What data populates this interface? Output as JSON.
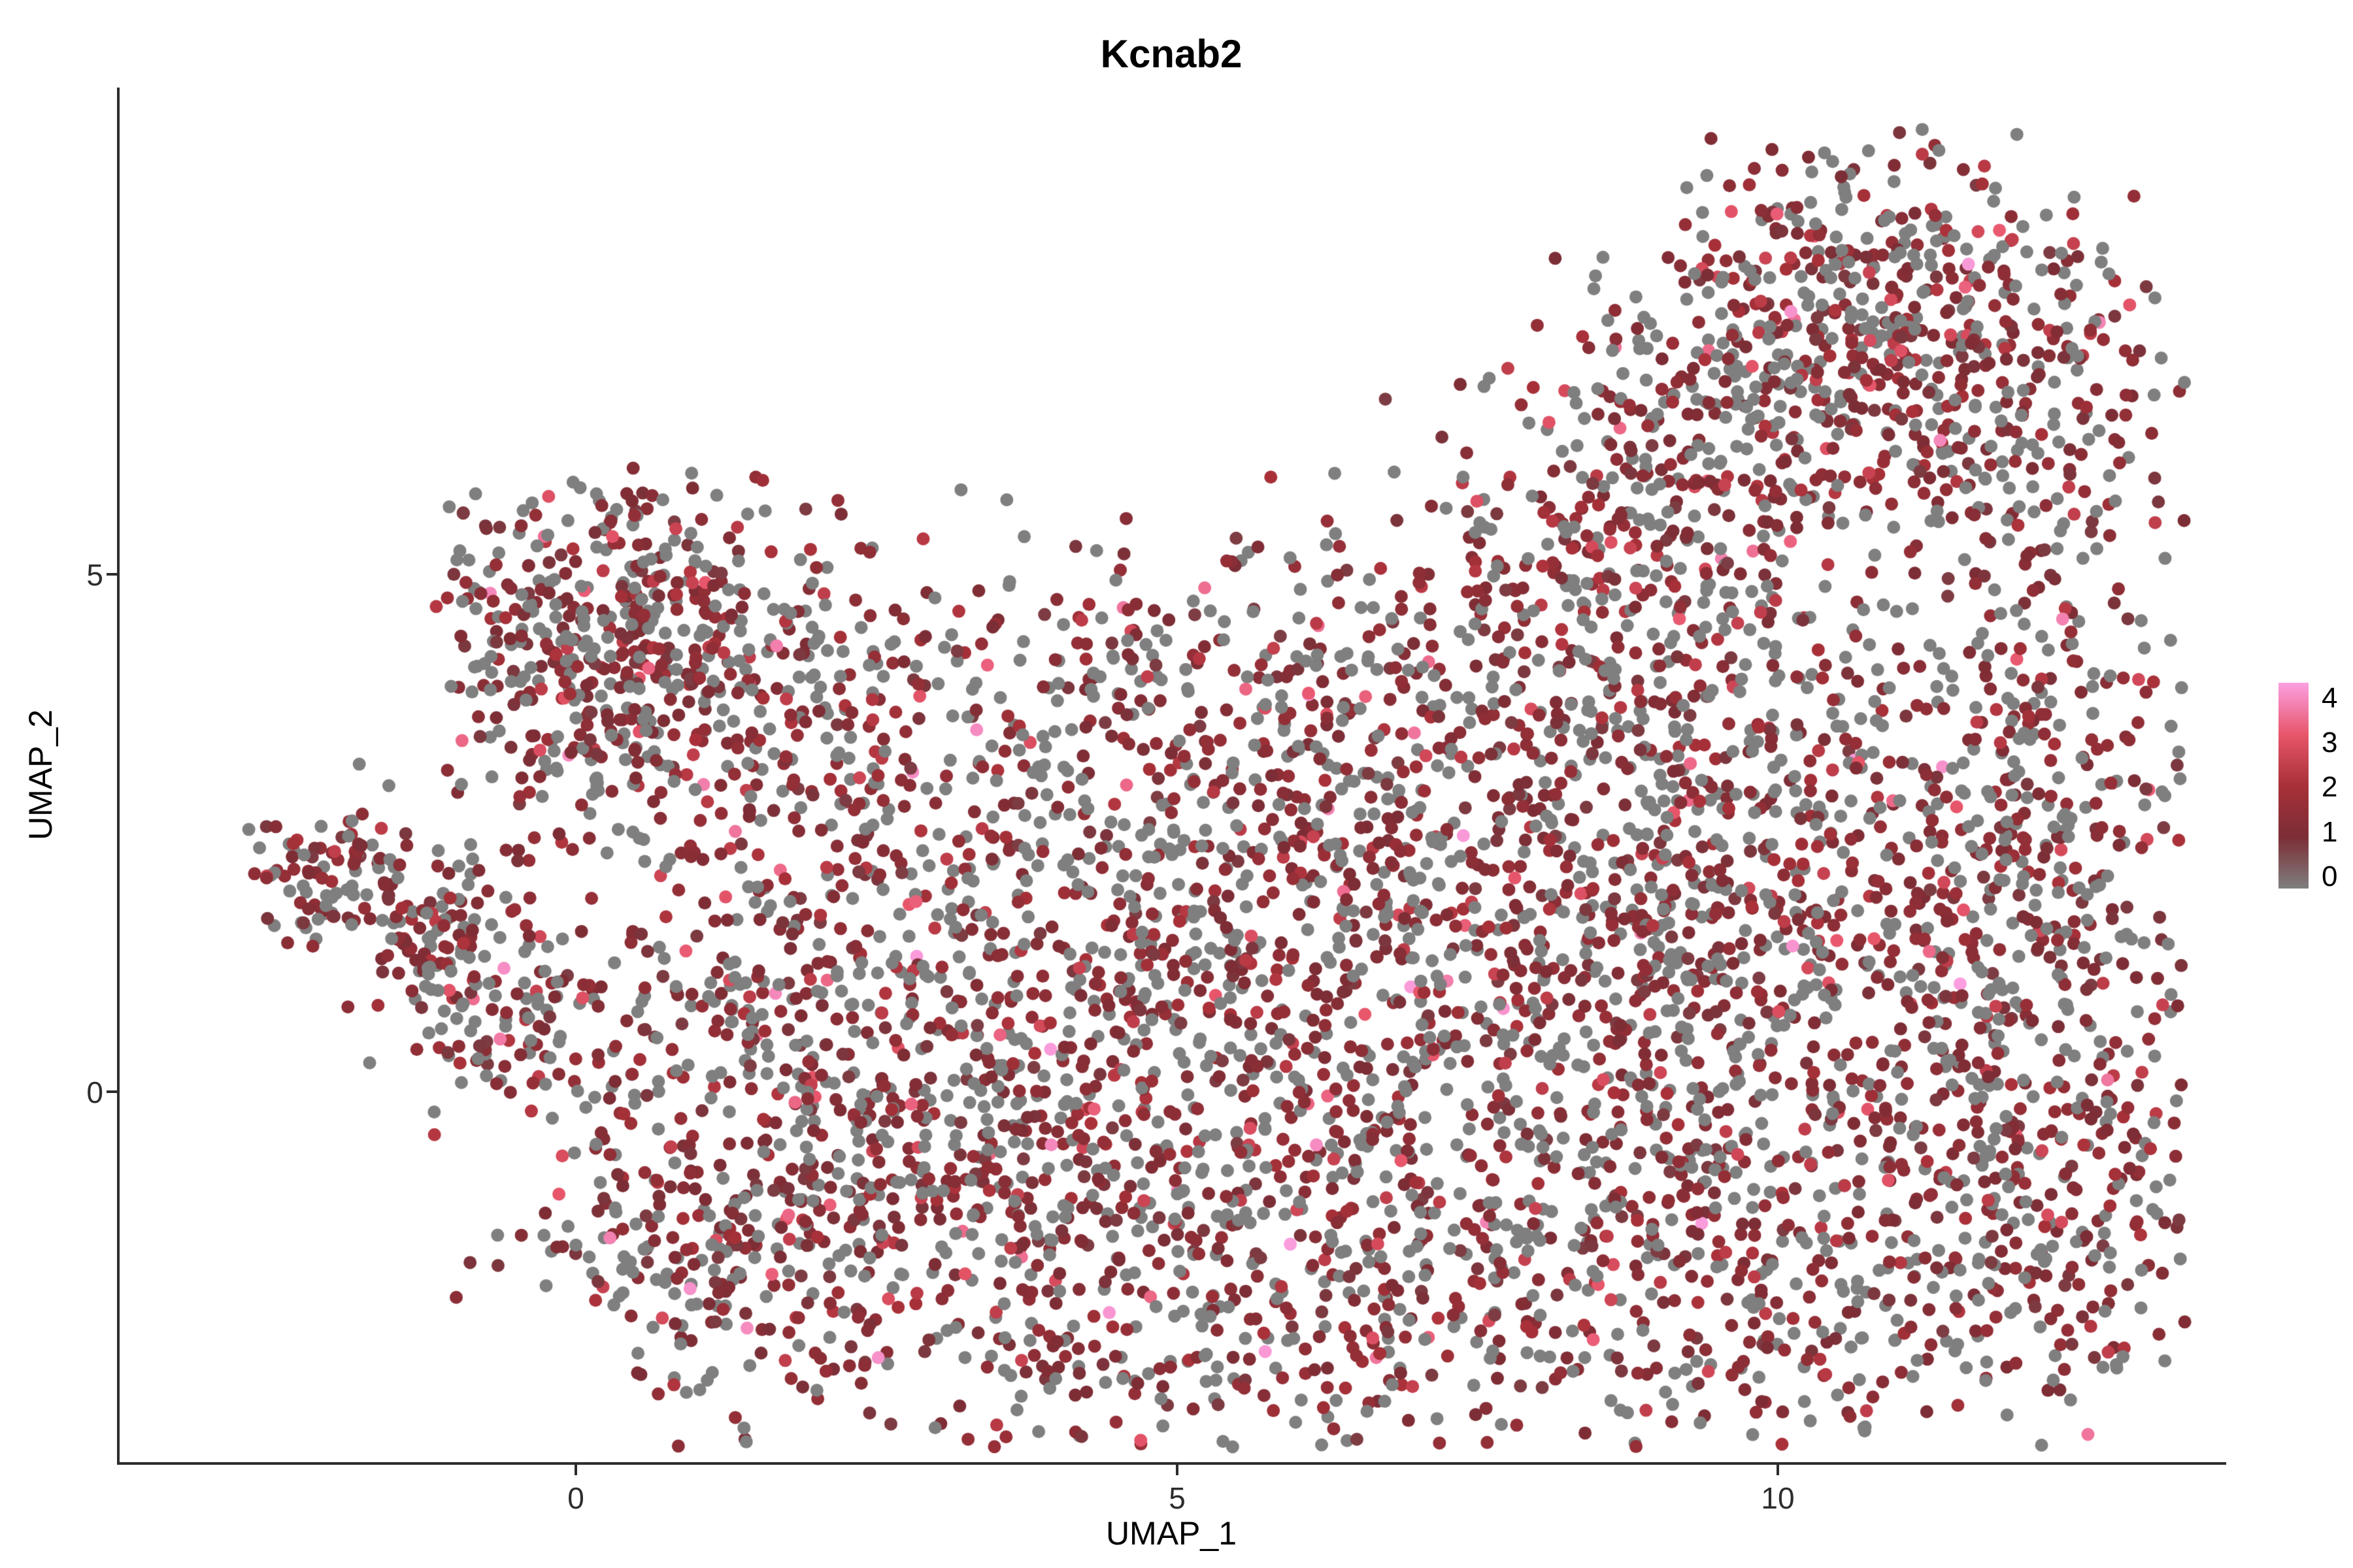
{
  "chart_data": {
    "type": "scatter",
    "title": "Kcnab2",
    "xlabel": "UMAP_1",
    "ylabel": "UMAP_2",
    "x_ticks": [
      0,
      5,
      10
    ],
    "y_ticks": [
      5,
      0
    ],
    "x_range": [
      -3.8,
      13.7
    ],
    "y_range": [
      -3.58,
      9.7
    ],
    "grid": false,
    "legend_position": "right",
    "legend": {
      "min": 0,
      "max": 4,
      "ticks": [
        4,
        3,
        2,
        1,
        0
      ]
    },
    "color_stops": [
      "#7f7f7f",
      "#7c2d35",
      "#a83038",
      "#e8566b",
      "#fba0e2"
    ],
    "point_radius": 10,
    "seed": 42,
    "point_bounds": {
      "x": [
        -2.75,
        13.4
      ],
      "y": [
        -3.45,
        9.35
      ]
    },
    "value_distribution": [
      {
        "p": 0.42,
        "range": [
          0.0,
          0.0
        ]
      },
      {
        "p": 0.45,
        "range": [
          0.8,
          1.6
        ]
      },
      {
        "p": 0.095,
        "range": [
          1.6,
          2.4
        ]
      },
      {
        "p": 0.028,
        "range": [
          2.4,
          3.3
        ]
      },
      {
        "p": 0.007,
        "range": [
          3.3,
          4.0
        ]
      }
    ],
    "clusters": [
      {
        "x": 10.8,
        "y": 7.6,
        "sx": 1.0,
        "sy": 0.75,
        "n": 430
      },
      {
        "x": 9.4,
        "y": 6.3,
        "sx": 0.9,
        "sy": 0.8,
        "n": 250
      },
      {
        "x": 11.9,
        "y": 6.1,
        "sx": 0.7,
        "sy": 0.9,
        "n": 190
      },
      {
        "x": 8.4,
        "y": 5.2,
        "sx": 0.8,
        "sy": 0.6,
        "n": 120
      },
      {
        "x": 0.2,
        "y": 4.8,
        "sx": 0.85,
        "sy": 0.65,
        "n": 310
      },
      {
        "x": 1.3,
        "y": 3.9,
        "sx": 0.8,
        "sy": 0.6,
        "n": 190
      },
      {
        "x": 0.0,
        "y": 3.2,
        "sx": 0.5,
        "sy": 0.5,
        "n": 90
      },
      {
        "x": -2.0,
        "y": 2.1,
        "sx": 0.35,
        "sy": 0.35,
        "n": 90
      },
      {
        "x": -1.3,
        "y": 1.5,
        "sx": 0.4,
        "sy": 0.4,
        "n": 90
      },
      {
        "x": -0.55,
        "y": 0.8,
        "sx": 0.5,
        "sy": 0.55,
        "n": 120
      },
      {
        "x": 6.5,
        "y": 0.3,
        "sx": 2.6,
        "sy": 1.6,
        "n": 950
      },
      {
        "x": 10.0,
        "y": 1.5,
        "sx": 1.8,
        "sy": 1.7,
        "n": 720
      },
      {
        "x": 3.5,
        "y": -0.8,
        "sx": 1.8,
        "sy": 1.4,
        "n": 560
      },
      {
        "x": 8.0,
        "y": 3.6,
        "sx": 2.2,
        "sy": 1.0,
        "n": 460
      },
      {
        "x": 5.5,
        "y": 2.2,
        "sx": 2.0,
        "sy": 1.0,
        "n": 310
      },
      {
        "x": 12.2,
        "y": 2.5,
        "sx": 0.8,
        "sy": 1.6,
        "n": 240
      },
      {
        "x": 1.8,
        "y": 0.3,
        "sx": 1.0,
        "sy": 1.2,
        "n": 240
      },
      {
        "x": 6.5,
        "y": -2.3,
        "sx": 2.5,
        "sy": 0.8,
        "n": 360
      },
      {
        "x": 10.5,
        "y": -1.5,
        "sx": 1.5,
        "sy": 1.0,
        "n": 300
      },
      {
        "x": 2.8,
        "y": 2.8,
        "sx": 1.2,
        "sy": 0.8,
        "n": 160
      },
      {
        "x": 4.5,
        "y": 4.2,
        "sx": 1.5,
        "sy": 0.6,
        "n": 110
      },
      {
        "x": 12.3,
        "y": -0.5,
        "sx": 0.7,
        "sy": 1.2,
        "n": 180
      },
      {
        "x": 0.8,
        "y": -1.5,
        "sx": 0.8,
        "sy": 0.7,
        "n": 130
      }
    ]
  }
}
